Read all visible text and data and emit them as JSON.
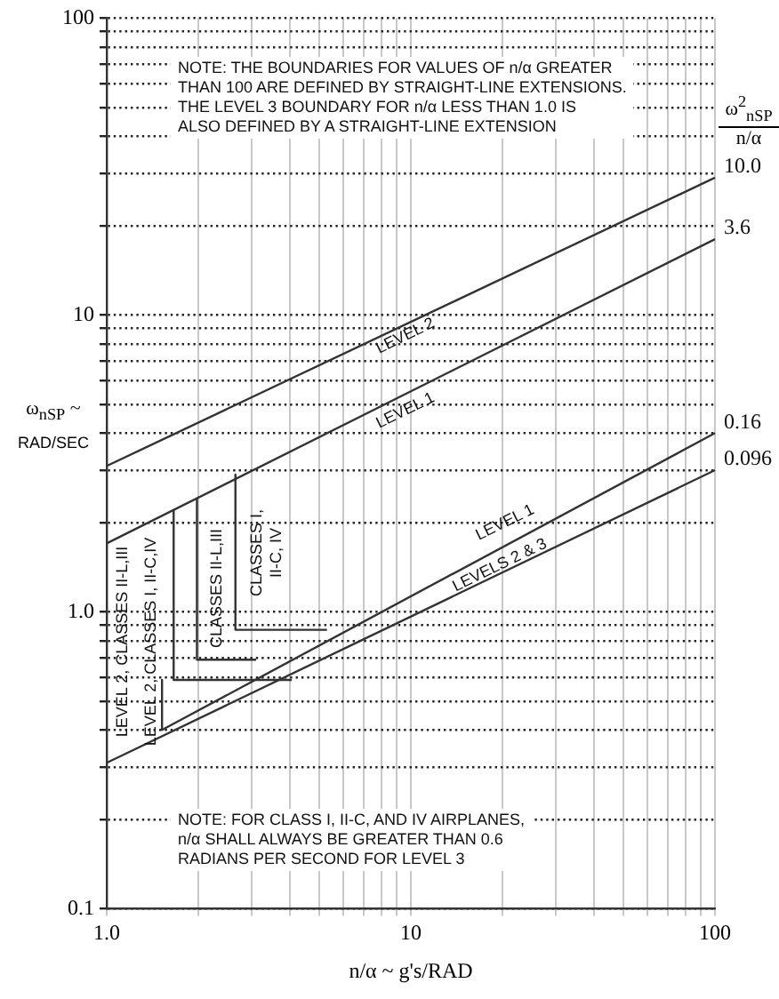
{
  "chart_data": {
    "type": "line",
    "xlabel": "n/α ~ g's/RAD",
    "ylabel": "ω$_{nSP}$ ~\nRAD/SEC",
    "legend_title": "ω$^{2}$$_{nSP}$\nn/α",
    "log": "xy",
    "xlim": [
      1,
      100
    ],
    "ylim": [
      0.1,
      100
    ],
    "xticks": [
      {
        "value": 1,
        "label": "1.0"
      },
      {
        "value": 2,
        "label": null
      },
      {
        "value": 3,
        "label": null
      },
      {
        "value": 4,
        "label": null
      },
      {
        "value": 5,
        "label": null
      },
      {
        "value": 6,
        "label": null
      },
      {
        "value": 7,
        "label": null
      },
      {
        "value": 8,
        "label": null
      },
      {
        "value": 9,
        "label": null
      },
      10,
      {
        "value": 20,
        "label": null
      },
      {
        "value": 30,
        "label": null
      },
      {
        "value": 40,
        "label": null
      },
      {
        "value": 50,
        "label": null
      },
      {
        "value": 60,
        "label": null
      },
      {
        "value": 70,
        "label": null
      },
      {
        "value": 80,
        "label": null
      },
      {
        "value": 90,
        "label": null
      },
      100
    ],
    "yticks": [
      0.1,
      {
        "value": 0.2,
        "label": null
      },
      {
        "value": 0.3,
        "label": null
      },
      {
        "value": 0.4,
        "label": null
      },
      {
        "value": 0.5,
        "label": null
      },
      {
        "value": 0.6,
        "label": null
      },
      {
        "value": 0.7,
        "label": null
      },
      {
        "value": 0.8,
        "label": null
      },
      {
        "value": 0.9,
        "label": null
      },
      {
        "value": 1,
        "label": "1.0"
      },
      {
        "value": 2,
        "label": null
      },
      {
        "value": 3,
        "label": null
      },
      {
        "value": 4,
        "label": null
      },
      {
        "value": 5,
        "label": null
      },
      {
        "value": 6,
        "label": null
      },
      {
        "value": 7,
        "label": null
      },
      {
        "value": 8,
        "label": null
      },
      {
        "value": 9,
        "label": null
      },
      10,
      {
        "value": 20,
        "label": null
      },
      {
        "value": 30,
        "label": null
      },
      {
        "value": 40,
        "label": null
      },
      {
        "value": 50,
        "label": null
      },
      {
        "value": 60,
        "label": null
      },
      {
        "value": 70,
        "label": null
      },
      {
        "value": 80,
        "label": null
      },
      {
        "value": 90,
        "label": null
      },
      100
    ],
    "grid": true,
    "marker": "none",
    "line_style": "solid",
    "series": [
      {
        "name": "10.0",
        "color": "#333333",
        "x": [
          1,
          100
        ],
        "values": [
          3.1,
          29
        ]
      },
      {
        "name": "3.6",
        "color": "#333333",
        "x": [
          1,
          100
        ],
        "values": [
          1.7,
          18
        ]
      },
      {
        "name": "0.16",
        "color": "#333333",
        "x": [
          1.52,
          100
        ],
        "values": [
          0.4,
          4.0
        ]
      },
      {
        "name": "0.096",
        "color": "#333333",
        "x": [
          1,
          100
        ],
        "values": [
          0.31,
          3.0
        ]
      },
      {
        "color": "#333333",
        "x": [
          1.52,
          1.52
        ],
        "values": [
          0.59,
          0.4
        ]
      },
      {
        "color": "#333333",
        "x": [
          1.66,
          1.66,
          4.06
        ],
        "values": [
          2.2,
          0.59,
          0.59
        ]
      },
      {
        "color": "#333333",
        "x": [
          1.98,
          1.98,
          3.1
        ],
        "values": [
          2.4,
          0.69,
          0.69
        ]
      },
      {
        "color": "#333333",
        "x": [
          2.65,
          2.65,
          5.3
        ],
        "values": [
          2.9,
          0.87,
          0.87
        ]
      }
    ],
    "annotations": [
      "NOTE:  THE BOUNDARIES FOR VALUES OF n/α GREATER\nTHAN 100 ARE DEFINED BY STRAIGHT-LINE EXTENSIONS.\nTHE LEVEL 3 BOUNDARY FOR n/α LESS THAN 1.0 IS\nALSO DEFINED BY A STRAIGHT-LINE EXTENSION",
      "NOTE:  FOR CLASS I, II-C, AND IV AIRPLANES,\nn/α SHALL ALWAYS BE GREATER THAN 0.6\nRADIANS PER SECOND FOR LEVEL 3",
      "LEVEL 2",
      "LEVEL 1",
      "LEVEL 1",
      "LEVELS 2 & 3",
      "LEVEL 2, CLASSES II-L,III",
      "LEVEL 2, CLASSES I, II-C,IV",
      "CLASSES II-L,III",
      "CLASSES I,\nII-C, IV"
    ]
  }
}
